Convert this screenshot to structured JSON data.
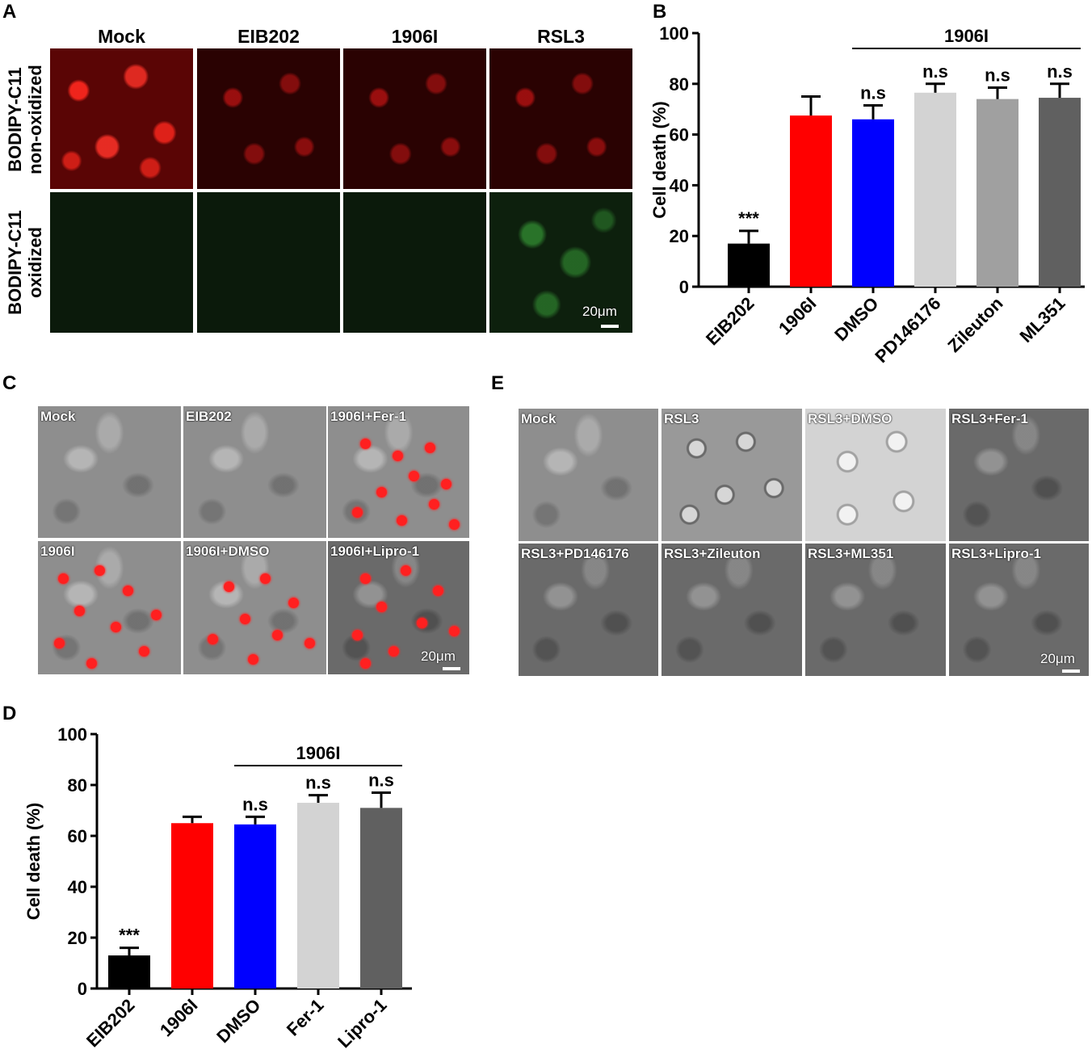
{
  "panel_labels": {
    "a": "A",
    "b": "B",
    "c": "C",
    "d": "D",
    "e": "E"
  },
  "panel_a": {
    "columns": [
      "Mock",
      "EIB202",
      "1906I",
      "RSL3"
    ],
    "rows": [
      {
        "line1": "BODIPY-C11",
        "line2": "non-oxidized"
      },
      {
        "line1": "BODIPY-C11",
        "line2": "oxidized"
      }
    ],
    "scale_bar": "20μm",
    "colors": {
      "non_oxidized": "#ff2020",
      "oxidized": "#3caa3c"
    }
  },
  "panel_c": {
    "tiles": [
      "Mock",
      "EIB202",
      "1906I+Fer-1",
      "1906I",
      "1906I+DMSO",
      "1906I+Lipro-1"
    ],
    "scale_bar": "20μm"
  },
  "panel_e": {
    "tiles": [
      "Mock",
      "RSL3",
      "RSL3+DMSO",
      "RSL3+Fer-1",
      "RSL3+PD146176",
      "RSL3+Zileuton",
      "RSL3+ML351",
      "RSL3+Lipro-1"
    ],
    "scale_bar": "20μm"
  },
  "chart_data": [
    {
      "panel": "B",
      "type": "bar",
      "categories": [
        "EIB202",
        "1906I",
        "DMSO",
        "PD146176",
        "Zileuton",
        "ML351"
      ],
      "values": [
        17,
        67.5,
        66,
        76.5,
        74,
        74.5
      ],
      "errors": [
        5,
        7.5,
        5.5,
        3.5,
        4.5,
        5.5
      ],
      "colors": [
        "#000000",
        "#ff0000",
        "#0000ff",
        "#d3d3d3",
        "#a0a0a0",
        "#606060"
      ],
      "annotations": [
        "***",
        "",
        "n.s",
        "n.s",
        "n.s",
        "n.s"
      ],
      "group_label": "1906I",
      "group_span": [
        2,
        5
      ],
      "ylabel": "Cell death (%)",
      "ylim": [
        0,
        100
      ],
      "yticks": [
        0,
        20,
        40,
        60,
        80,
        100
      ]
    },
    {
      "panel": "D",
      "type": "bar",
      "categories": [
        "EIB202",
        "1906I",
        "DMSO",
        "Fer-1",
        "Lipro-1"
      ],
      "values": [
        13,
        65,
        64.5,
        73,
        71
      ],
      "errors": [
        3,
        2.5,
        3,
        3,
        6
      ],
      "colors": [
        "#000000",
        "#ff0000",
        "#0000ff",
        "#d3d3d3",
        "#606060"
      ],
      "annotations": [
        "***",
        "",
        "n.s",
        "n.s",
        "n.s"
      ],
      "group_label": "1906I",
      "group_span": [
        2,
        4
      ],
      "ylabel": "Cell death (%)",
      "ylim": [
        0,
        100
      ],
      "yticks": [
        0,
        20,
        40,
        60,
        80,
        100
      ]
    }
  ]
}
